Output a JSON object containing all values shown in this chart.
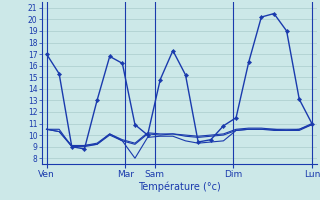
{
  "background_color": "#cce8e8",
  "grid_color": "#aacccc",
  "line_color": "#1a3aad",
  "xlabel": "Température (°c)",
  "xlabel_color": "#1a3aad",
  "xtick_labels": [
    "Ven",
    "Mar",
    "Sam",
    "Dim",
    "Lun"
  ],
  "xtick_positions": [
    0,
    8,
    11,
    19,
    27
  ],
  "ytick_min": 8,
  "ytick_max": 21,
  "ylim": [
    7.5,
    21.5
  ],
  "series0": [
    17.0,
    15.3,
    9.0,
    8.8,
    13.0,
    16.8,
    16.2,
    10.9,
    10.0,
    14.8,
    17.3,
    15.2,
    9.4,
    9.6,
    10.8,
    11.5,
    16.3,
    20.2,
    20.5,
    19.0,
    13.1,
    11.0
  ],
  "series1": [
    10.5,
    10.5,
    9.0,
    9.0,
    9.2,
    10.0,
    9.5,
    8.0,
    9.8,
    9.9,
    9.9,
    9.5,
    9.3,
    9.4,
    9.5,
    10.4,
    10.5,
    10.5,
    10.4,
    10.4,
    10.4,
    10.9
  ],
  "series2": [
    10.5,
    10.3,
    9.0,
    9.1,
    9.2,
    10.1,
    9.5,
    9.2,
    10.1,
    10.0,
    10.1,
    9.9,
    9.8,
    9.9,
    10.0,
    10.4,
    10.5,
    10.5,
    10.5,
    10.4,
    10.5,
    10.9
  ],
  "series3": [
    10.5,
    10.3,
    9.1,
    9.1,
    9.3,
    10.1,
    9.6,
    9.3,
    10.2,
    10.1,
    10.1,
    10.0,
    9.9,
    10.0,
    10.1,
    10.5,
    10.6,
    10.6,
    10.5,
    10.5,
    10.5,
    11.0
  ],
  "n_points": 22,
  "vline_positions": [
    0,
    8,
    11,
    19,
    27
  ],
  "xlim": [
    -0.5,
    27.5
  ]
}
